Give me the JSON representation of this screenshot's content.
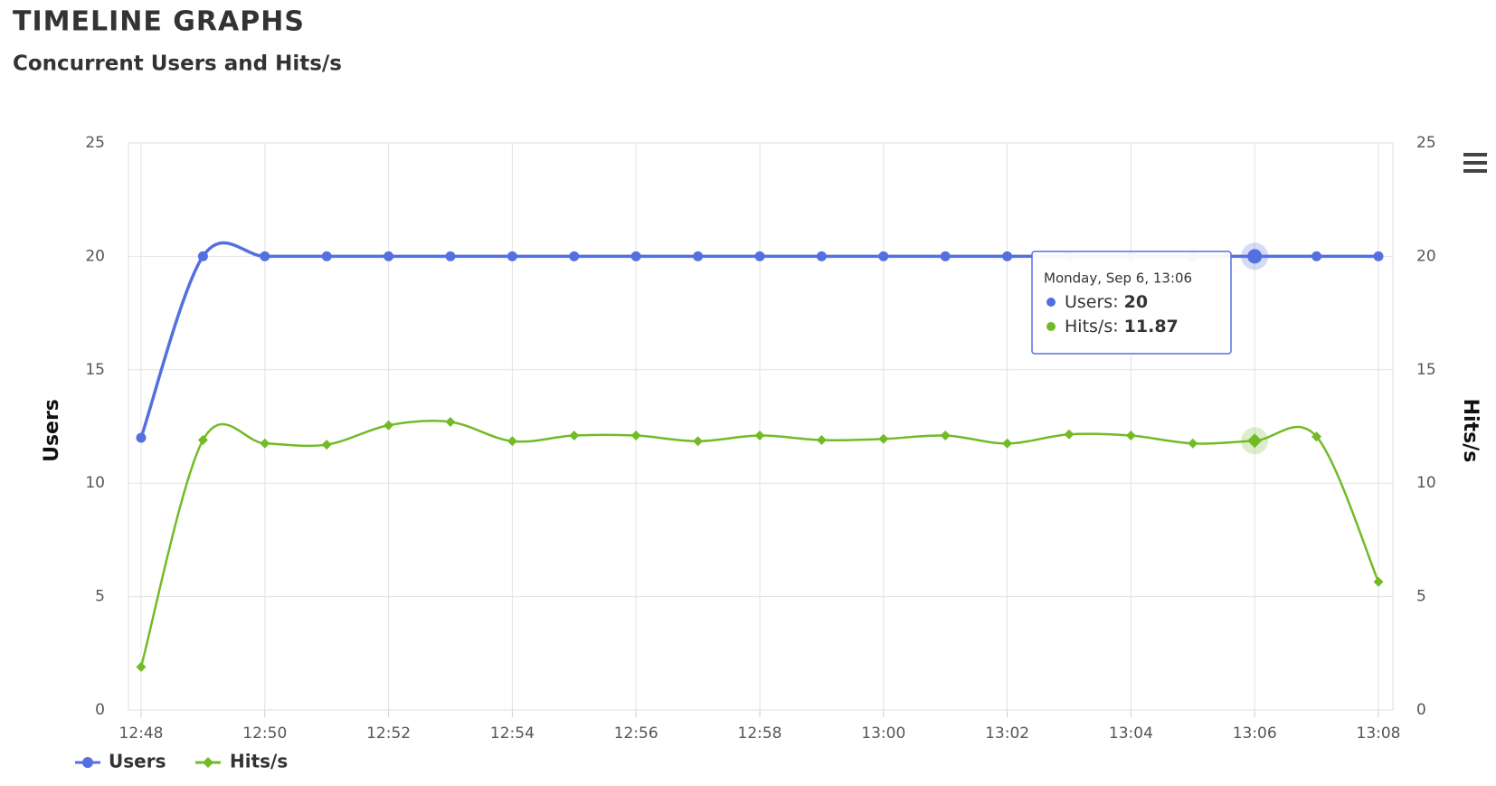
{
  "header": {
    "title": "TIMELINE GRAPHS",
    "subtitle": "Concurrent Users and Hits/s"
  },
  "chart_data": {
    "type": "line",
    "y_label": "Users",
    "y2_label": "Hits/s",
    "categories": [
      "12:48",
      null,
      "12:50",
      null,
      "12:52",
      null,
      "12:54",
      null,
      "12:56",
      null,
      "12:58",
      null,
      "13:00",
      null,
      "13:02",
      null,
      "13:04",
      null,
      "13:06",
      null,
      "13:08"
    ],
    "series": [
      {
        "name": "Users",
        "color": "#5470e0",
        "values": [
          12,
          20,
          20,
          20,
          20,
          20,
          20,
          20,
          20,
          20,
          20,
          20,
          20,
          20,
          20,
          20,
          20,
          20,
          20,
          20,
          20
        ]
      },
      {
        "name": "Hits/s",
        "color": "#72bb26",
        "axis": "y2",
        "values": [
          1.9,
          11.9,
          11.75,
          11.7,
          12.55,
          12.7,
          11.85,
          12.1,
          12.1,
          11.85,
          12.1,
          11.9,
          11.95,
          12.1,
          11.75,
          12.15,
          12.1,
          11.75,
          11.87,
          12.05,
          5.65
        ]
      }
    ],
    "ylim": [
      0,
      25
    ],
    "yticks": [
      0,
      5,
      10,
      15,
      20,
      25
    ],
    "y2lim": [
      0,
      25
    ],
    "y2ticks": [
      0,
      5,
      10,
      15,
      20,
      25
    ],
    "grid": true,
    "legend": "bottom-left",
    "tooltip": {
      "title": "Monday, Sep 6, 13:06",
      "index": 18
    }
  }
}
